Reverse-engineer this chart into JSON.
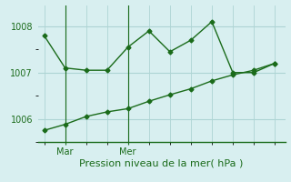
{
  "line1_x": [
    0,
    1,
    2,
    3,
    4,
    5,
    6,
    7,
    8,
    9,
    10,
    11
  ],
  "line1_y": [
    1007.8,
    1007.1,
    1007.05,
    1007.05,
    1007.55,
    1007.9,
    1007.45,
    1007.7,
    1008.1,
    1007.0,
    1007.0,
    1007.2
  ],
  "line2_x": [
    0,
    1,
    2,
    3,
    4,
    5,
    6,
    7,
    8,
    9,
    10,
    11
  ],
  "line2_y": [
    1005.75,
    1005.88,
    1006.05,
    1006.15,
    1006.22,
    1006.38,
    1006.52,
    1006.65,
    1006.82,
    1006.95,
    1007.05,
    1007.2
  ],
  "xtick_positions": [
    1,
    4
  ],
  "xtick_labels": [
    "Mar",
    "Mer"
  ],
  "ytick_positions": [
    1006,
    1007,
    1008
  ],
  "ytick_labels": [
    "1006",
    "1007",
    "1008"
  ],
  "ylim": [
    1005.5,
    1008.45
  ],
  "xlim": [
    -0.3,
    11.5
  ],
  "line_color": "#1a6b1a",
  "bg_color": "#d8eff0",
  "grid_color": "#aed4d4",
  "xlabel": "Pression niveau de la mer( hPa )",
  "marker": "D",
  "marker_size": 2.5,
  "linewidth": 1.0,
  "tick_fontsize": 7,
  "xlabel_fontsize": 8
}
